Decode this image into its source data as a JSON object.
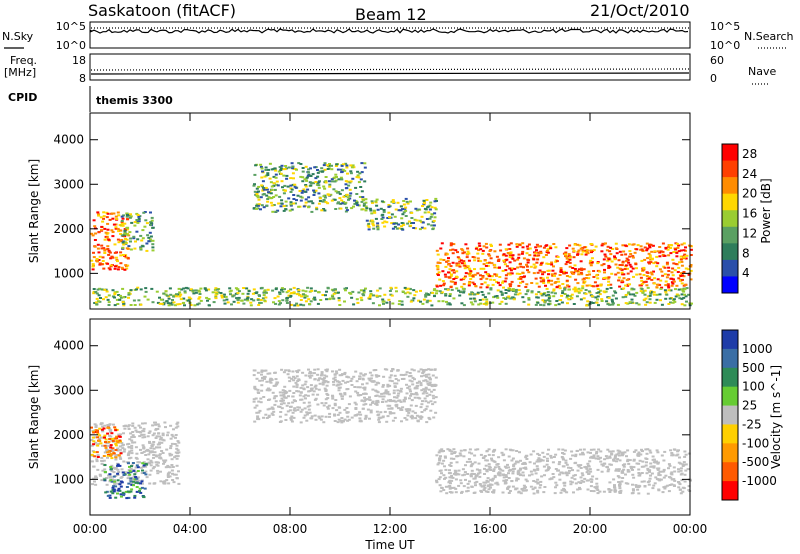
{
  "header": {
    "station": "Saskatoon (fitACF)",
    "beam": "Beam 12",
    "date": "21/Oct/2010"
  },
  "side_labels": {
    "nsky": "N.Sky",
    "nsearch": "N.Search",
    "freq_line1": "Freq.",
    "freq_line2": "[MHz]",
    "nave": "Nave",
    "cpid": "CPID",
    "cpid_value": "themis 3300"
  },
  "colors": {
    "power": [
      "#0000ff",
      "#2a4faa",
      "#2e7d5b",
      "#5aa062",
      "#9acd32",
      "#ffd700",
      "#ff8c00",
      "#ff4000",
      "#ff0000"
    ],
    "velocity_pos": [
      "#1e3ca8",
      "#3a6ea5",
      "#2e8b57",
      "#66cc33"
    ],
    "velocity_gs": "#bebebe",
    "velocity_neg": [
      "#ffd000",
      "#ff9a00",
      "#ff5a00",
      "#ff0000"
    ]
  },
  "chart_data": [
    {
      "type": "line",
      "panel": "noise",
      "yticks": [
        "10^5",
        "10^0"
      ],
      "yticks_right": [
        "10^5",
        "10^0"
      ],
      "series": [
        {
          "name": "N.Sky",
          "style": "solid"
        },
        {
          "name": "N.Search",
          "style": "dotted"
        }
      ]
    },
    {
      "type": "line",
      "panel": "frequency",
      "yticks": [
        "18",
        "8"
      ],
      "yticks_right": [
        "60",
        "0"
      ],
      "series": [
        {
          "name": "Freq. [MHz]",
          "style": "solid"
        },
        {
          "name": "Nave",
          "style": "dotted"
        }
      ]
    },
    {
      "type": "heatmap",
      "panel": "power",
      "xlabel": "",
      "ylabel": "Slant Range [km]",
      "yticks": [
        1000,
        2000,
        3000,
        4000
      ],
      "ylim": [
        200,
        4600
      ],
      "xticks": [
        "00:00",
        "04:00",
        "08:00",
        "12:00",
        "16:00",
        "20:00",
        "00:00"
      ],
      "xlim": [
        0,
        24
      ],
      "colorbar": {
        "label": "Power [dB]",
        "ticks": [
          4,
          8,
          12,
          16,
          20,
          24,
          28
        ],
        "range": [
          0,
          30
        ]
      },
      "features": [
        {
          "t": [
            0.0,
            1.5
          ],
          "r": [
            1100,
            2400
          ],
          "level": "high"
        },
        {
          "t": [
            1.2,
            2.5
          ],
          "r": [
            1500,
            2400
          ],
          "level": "medium"
        },
        {
          "t": [
            6.5,
            11.0
          ],
          "r": [
            2400,
            3500
          ],
          "level": "medium"
        },
        {
          "t": [
            11.0,
            13.8
          ],
          "r": [
            2000,
            2700
          ],
          "level": "medium"
        },
        {
          "t": [
            13.8,
            24.0
          ],
          "r": [
            700,
            1700
          ],
          "level": "high"
        },
        {
          "t": [
            0.0,
            24.0
          ],
          "r": [
            300,
            700
          ],
          "level": "low"
        }
      ]
    },
    {
      "type": "heatmap",
      "panel": "velocity",
      "xlabel": "Time UT",
      "ylabel": "Slant Range [km]",
      "yticks": [
        1000,
        2000,
        3000,
        4000
      ],
      "ylim": [
        200,
        4600
      ],
      "xticks": [
        "00:00",
        "04:00",
        "08:00",
        "12:00",
        "16:00",
        "20:00",
        "00:00"
      ],
      "xlim": [
        0,
        24
      ],
      "colorbar": {
        "label": "Velocity [m s^-1]",
        "ticks": [
          1000,
          500,
          100,
          25,
          -25,
          -100,
          -500,
          -1000
        ]
      },
      "features": [
        {
          "t": [
            0.0,
            3.5
          ],
          "r": [
            900,
            2300
          ],
          "class": "ground-scatter"
        },
        {
          "t": [
            6.5,
            13.8
          ],
          "r": [
            2300,
            3500
          ],
          "class": "ground-scatter"
        },
        {
          "t": [
            13.8,
            24.0
          ],
          "r": [
            700,
            1700
          ],
          "class": "ground-scatter"
        },
        {
          "t": [
            0.0,
            1.2
          ],
          "r": [
            1500,
            2200
          ],
          "class": "negative"
        },
        {
          "t": [
            0.5,
            2.2
          ],
          "r": [
            600,
            1400
          ],
          "class": "positive"
        }
      ]
    }
  ]
}
